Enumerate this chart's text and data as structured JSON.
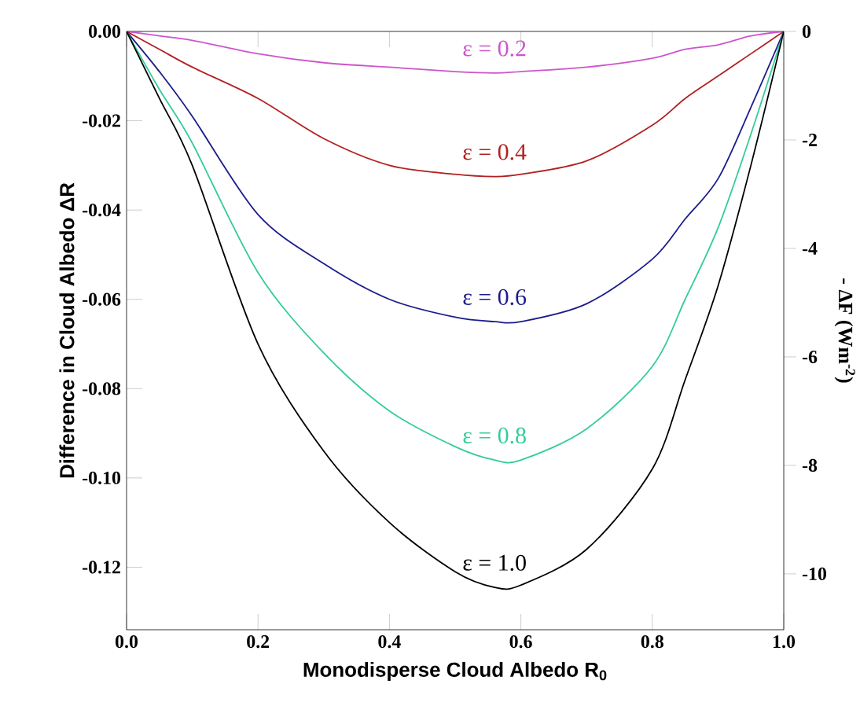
{
  "chart_data": {
    "type": "line",
    "xlabel": "Monodisperse Cloud Albedo R$_{0}$",
    "ylabel": "Difference in Cloud Albedo ΔR",
    "y2label": "- ΔF (Wm$^{-2}$)",
    "x": [
      0,
      0.05,
      0.1,
      0.2,
      0.3,
      0.4,
      0.5,
      0.56,
      0.6,
      0.7,
      0.8,
      0.85,
      0.9,
      0.95,
      1.0
    ],
    "series": [
      {
        "name": "ε  = 0.2",
        "color": "#cc55cc",
        "values": [
          0,
          -0.001,
          -0.002,
          -0.005,
          -0.007,
          -0.008,
          -0.009,
          -0.0093,
          -0.009,
          -0.008,
          -0.006,
          -0.004,
          -0.003,
          -0.001,
          0
        ]
      },
      {
        "name": "ε  = 0.4",
        "color": "#b22020",
        "values": [
          0,
          -0.004,
          -0.008,
          -0.015,
          -0.024,
          -0.03,
          -0.032,
          -0.0325,
          -0.032,
          -0.029,
          -0.021,
          -0.015,
          -0.01,
          -0.005,
          0
        ]
      },
      {
        "name": "ε = 0.6",
        "color": "#1c1c8c",
        "values": [
          0,
          -0.009,
          -0.019,
          -0.041,
          -0.052,
          -0.06,
          -0.064,
          -0.065,
          -0.065,
          -0.061,
          -0.051,
          -0.042,
          -0.033,
          -0.017,
          0
        ]
      },
      {
        "name": "ε = 0.8",
        "color": "#33cc99",
        "values": [
          0,
          -0.013,
          -0.025,
          -0.054,
          -0.072,
          -0.085,
          -0.093,
          -0.096,
          -0.096,
          -0.089,
          -0.075,
          -0.06,
          -0.044,
          -0.023,
          0
        ]
      },
      {
        "name": "ε = 1.0",
        "color": "#000000",
        "values": [
          0,
          -0.015,
          -0.03,
          -0.07,
          -0.094,
          -0.11,
          -0.121,
          -0.1245,
          -0.124,
          -0.116,
          -0.098,
          -0.078,
          -0.057,
          -0.03,
          0
        ]
      }
    ],
    "xlim": [
      0,
      1
    ],
    "xticks": [
      {
        "value": 0,
        "label": "0.0"
      },
      0.2,
      0.4,
      0.6,
      0.8,
      {
        "value": 1,
        "label": "1.0"
      }
    ],
    "ylim": [
      -0.134,
      0
    ],
    "yticks": [
      {
        "value": 0,
        "label": "0.00"
      },
      -0.02,
      -0.04,
      -0.06,
      -0.08,
      {
        "value": -0.1,
        "label": "-0.10"
      },
      -0.12
    ],
    "y2lim": [
      -11.03,
      0
    ],
    "y2ticks": [
      0,
      -2,
      -4,
      -6,
      -8,
      -10
    ],
    "grid": false,
    "marker": "none",
    "line_style": "solid"
  }
}
